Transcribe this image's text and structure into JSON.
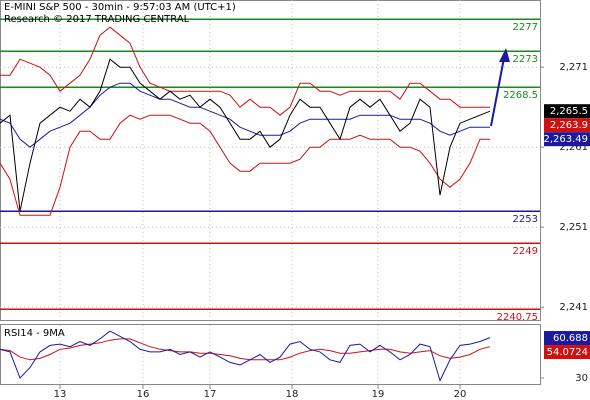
{
  "chart_data": [
    {
      "type": "line",
      "title": "E-MINI S&P 500 - 30min - 9:57:03 AM (UTC+1)",
      "subtitle": "Research © 2017 TRADING CENTRAL",
      "x": [
        0,
        1,
        2,
        3,
        4,
        5,
        6,
        7,
        8,
        9,
        10,
        11,
        12,
        13,
        14,
        15,
        16,
        17,
        18,
        19,
        20,
        21,
        22,
        23,
        24,
        25,
        26,
        27,
        28,
        29,
        30,
        31,
        32,
        33,
        34,
        35,
        36,
        37,
        38,
        39,
        40,
        41,
        42,
        43,
        44,
        45,
        46,
        47,
        48,
        49
      ],
      "xlim": [
        0,
        54
      ],
      "xticks": [
        {
          "value": 6,
          "label": "13"
        },
        {
          "value": 14.3,
          "label": "16"
        },
        {
          "value": 21,
          "label": "17"
        },
        {
          "value": 29.2,
          "label": "18"
        },
        {
          "value": 37.8,
          "label": "19"
        },
        {
          "value": 46,
          "label": "20"
        }
      ],
      "ylim": [
        2239.4,
        2279.4
      ],
      "yticks": [
        {
          "value": 2271,
          "label": "2,271"
        },
        {
          "value": 2261,
          "label": "2,261"
        },
        {
          "value": 2251,
          "label": "2,251"
        },
        {
          "value": 2241,
          "label": "2,241"
        }
      ],
      "grid": true,
      "series": [
        {
          "color": "#d01010",
          "values": [
            2270,
            2270,
            2272,
            2271.5,
            2271,
            2270,
            2268,
            2269,
            2270,
            2272,
            2275,
            2276,
            2275,
            2274,
            2271,
            2269,
            2268.5,
            2268,
            2268,
            2268,
            2268,
            2268,
            2268,
            2267.5,
            2266,
            2267,
            2266,
            2266,
            2265,
            2266,
            2269,
            2269,
            2268,
            2268,
            2267.5,
            2268,
            2268,
            2268,
            2268,
            2268,
            2267,
            2269,
            2269,
            2268,
            2267,
            2267,
            2266,
            2266,
            2266,
            2266
          ]
        },
        {
          "color": "#d01010",
          "values": [
            2259,
            2257,
            2252.5,
            2252.5,
            2252.5,
            2252.5,
            2256,
            2261,
            2263,
            2263,
            2262,
            2262,
            2264,
            2265,
            2264.5,
            2265,
            2265,
            2265,
            2264.5,
            2264,
            2264,
            2263,
            2261,
            2259,
            2258,
            2258,
            2259,
            2259,
            2259,
            2259,
            2259.5,
            2261,
            2261,
            2262,
            2262,
            2262,
            2262.5,
            2262,
            2262,
            2262,
            2261,
            2261,
            2260.5,
            2259,
            2257,
            2256,
            2257,
            2259,
            2262,
            2262
          ]
        },
        {
          "color": "#1a1aa0",
          "values": [
            2264.5,
            2264,
            2262,
            2261,
            2262,
            2263,
            2263.5,
            2264,
            2265,
            2266,
            2267.5,
            2268.5,
            2269,
            2269,
            2268,
            2267.5,
            2267,
            2267,
            2266.5,
            2266,
            2266,
            2265.5,
            2265,
            2264.5,
            2263.5,
            2263,
            2262.5,
            2262.5,
            2262.5,
            2263,
            2264,
            2264.5,
            2264.5,
            2264.5,
            2264.5,
            2264.5,
            2265,
            2265,
            2265,
            2265,
            2264.5,
            2264.5,
            2264.5,
            2264,
            2263,
            2262.5,
            2263,
            2263.5,
            2263.5,
            2263.5
          ]
        },
        {
          "color": "#000000",
          "values": [
            2264,
            2265,
            2253,
            2259,
            2264,
            2265,
            2266,
            2265.5,
            2267,
            2266,
            2268,
            2272,
            2271,
            2271,
            2269,
            2268,
            2267,
            2268,
            2267,
            2267.5,
            2266,
            2267,
            2266,
            2264,
            2262,
            2262,
            2263,
            2261,
            2262,
            2265,
            2267,
            2266,
            2266,
            2264,
            2262,
            2266,
            2267,
            2266,
            2267,
            2265,
            2263,
            2264,
            2267,
            2266,
            2255,
            2261,
            2264,
            2264.5,
            2265,
            2265.5
          ]
        }
      ],
      "levels": [
        {
          "value": 2277,
          "color": "#1a8a1a"
        },
        {
          "value": 2273,
          "color": "#1a8a1a"
        },
        {
          "value": 2268.5,
          "color": "#1a8a1a"
        },
        {
          "value": 2253,
          "color": "#1a1aa0"
        },
        {
          "value": 2249,
          "color": "#d01010"
        },
        {
          "value": 2240.75,
          "color": "#d01010"
        }
      ],
      "last_values": [
        {
          "value": 2265.5,
          "label": "2,265.5",
          "color": "#000000"
        },
        {
          "value": 2263.9,
          "label": "2,263.9",
          "color": "#d01010"
        },
        {
          "value": 2263.49,
          "label": "2,263.49",
          "color": "#1a1aa0"
        }
      ]
    },
    {
      "type": "line",
      "title": "RSI14 - 9MA",
      "x": [
        0,
        1,
        2,
        3,
        4,
        5,
        6,
        7,
        8,
        9,
        10,
        11,
        12,
        13,
        14,
        15,
        16,
        17,
        18,
        19,
        20,
        21,
        22,
        23,
        24,
        25,
        26,
        27,
        28,
        29,
        30,
        31,
        32,
        33,
        34,
        35,
        36,
        37,
        38,
        39,
        40,
        41,
        42,
        43,
        44,
        45,
        46,
        47,
        48,
        49
      ],
      "xlim": [
        0,
        54
      ],
      "ylim": [
        24.6,
        70.7
      ],
      "yticks": [
        30
      ],
      "series": [
        {
          "color": "#d01010",
          "values": [
            52,
            51,
            46,
            44,
            45,
            48,
            52,
            53,
            55,
            56,
            57,
            59,
            60,
            60,
            57,
            54,
            52,
            51,
            50,
            50,
            49,
            49,
            48,
            47,
            45,
            44,
            44,
            44,
            44,
            46,
            49,
            51,
            52,
            51,
            49,
            49,
            50,
            51,
            52,
            52,
            50,
            49,
            50,
            51,
            47,
            45,
            46,
            48,
            52,
            54
          ]
        },
        {
          "color": "#1a1aa0",
          "values": [
            52,
            50,
            30,
            38,
            50,
            55,
            56,
            54,
            58,
            55,
            60,
            66,
            62,
            58,
            52,
            50,
            50,
            52,
            48,
            50,
            46,
            50,
            46,
            42,
            40,
            44,
            48,
            42,
            46,
            56,
            58,
            52,
            50,
            44,
            42,
            55,
            56,
            50,
            55,
            50,
            44,
            48,
            56,
            54,
            28,
            44,
            55,
            56,
            58,
            61
          ]
        }
      ],
      "last_values": [
        {
          "value": 60.688,
          "label": "60.688",
          "color": "#1a1aa0"
        },
        {
          "value": 54.0724,
          "label": "54.0724",
          "color": "#d01010"
        }
      ]
    }
  ]
}
